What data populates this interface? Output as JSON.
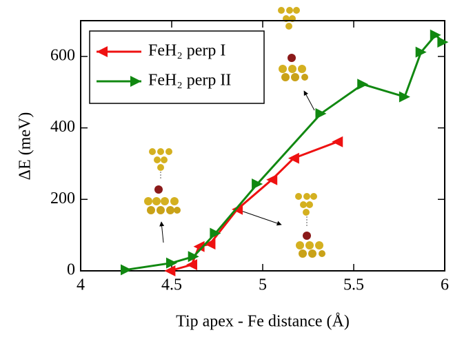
{
  "chart_data": {
    "type": "line",
    "x_label": "Tip apex - Fe distance (Å)",
    "y_label": "ΔE (meV)",
    "xlim": [
      4,
      6
    ],
    "ylim": [
      0,
      700
    ],
    "xticks": [
      4,
      4.5,
      5,
      5.5,
      6
    ],
    "yticks": [
      0,
      200,
      400,
      600
    ],
    "legend": "upper left",
    "series": [
      {
        "name": "FeH₂ perp I",
        "color": "#ee1111",
        "marker": "left",
        "x": [
          4.49,
          4.61,
          4.65,
          4.71,
          4.86,
          5.05,
          5.17,
          5.41
        ],
        "values": [
          0,
          17,
          68,
          75,
          172,
          255,
          315,
          361
        ]
      },
      {
        "name": "FeH₂ perp II",
        "color": "#118811",
        "marker": "right",
        "x": [
          4.25,
          4.5,
          4.62,
          4.74,
          4.97,
          5.32,
          5.55,
          5.78,
          5.87,
          5.95,
          5.99
        ],
        "values": [
          3,
          22,
          40,
          105,
          243,
          440,
          522,
          487,
          612,
          660,
          640
        ]
      }
    ]
  }
}
